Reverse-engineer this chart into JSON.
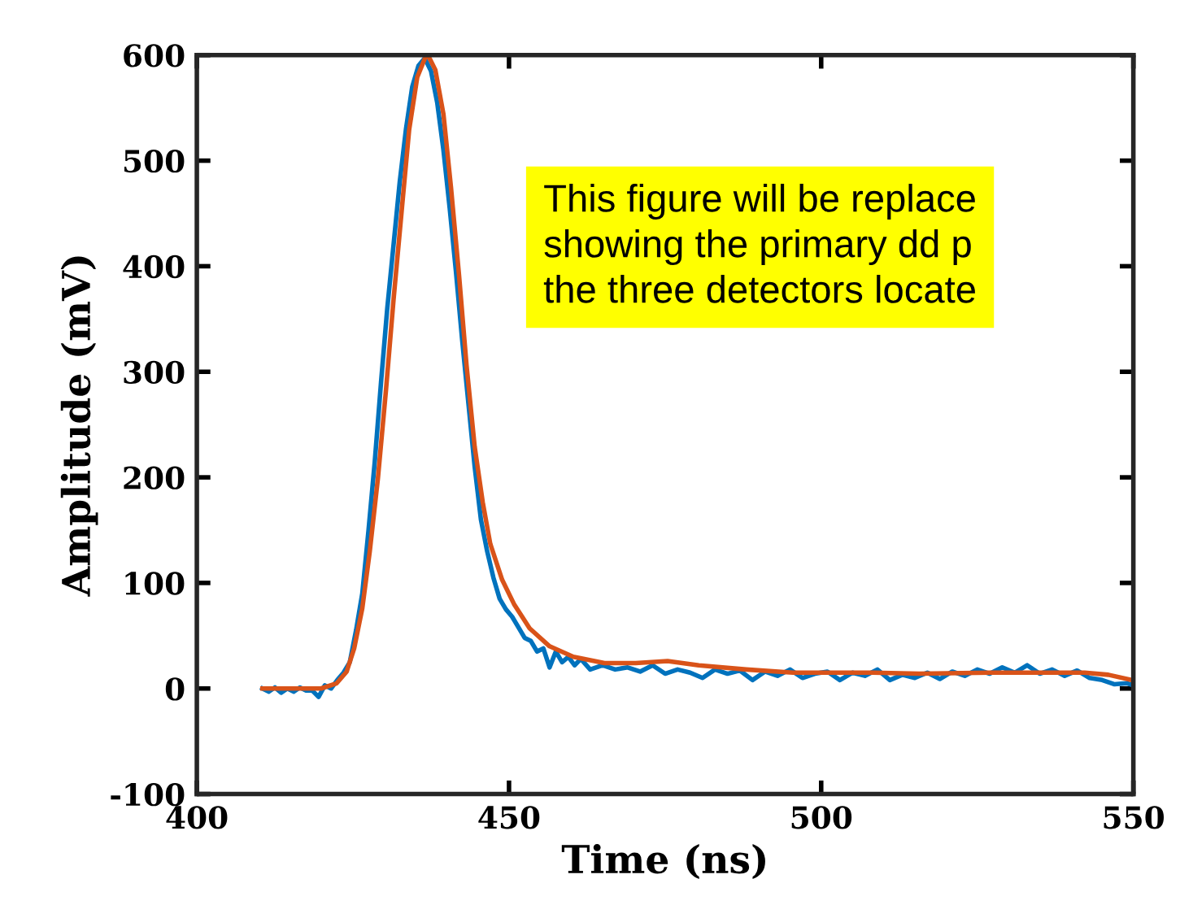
{
  "chart_data": {
    "type": "line",
    "xlabel": "Time (ns)",
    "ylabel": "Amplitude (mV)",
    "xlim": [
      400,
      550
    ],
    "xticks": [
      400,
      450,
      500,
      550
    ],
    "ylim": [
      -100,
      600
    ],
    "yticks": [
      -100,
      0,
      100,
      200,
      300,
      400,
      500,
      600
    ],
    "grid": false,
    "marker": "none",
    "line_style": "solid",
    "annotations": [
      "This figure will be replace\nshowing the primary dd p\nthe three detectors locate"
    ],
    "series": [
      {
        "color": "#0072bd",
        "x": [
          410.5,
          411.5,
          412.5,
          413.5,
          414.5,
          415.5,
          416.5,
          417.5,
          418.5,
          419.5,
          420.5,
          421.5,
          422.5,
          423.5,
          424.5,
          425.5,
          426.5,
          427.5,
          428.5,
          429.5,
          430.5,
          431.5,
          432.5,
          433.5,
          434.5,
          435.5,
          436.5,
          437.5,
          438.5,
          439.5,
          440.5,
          441.5,
          442.5,
          443.5,
          444.5,
          445.5,
          446.5,
          447.5,
          448.5,
          449.5,
          450.5,
          451.5,
          452.5,
          453.5,
          454.5,
          455.5,
          456.5,
          457.5,
          458.5,
          459.5,
          460.5,
          461.5,
          463,
          465,
          467,
          469,
          471,
          473,
          475,
          477,
          479,
          481,
          483,
          485,
          487,
          489,
          491,
          493,
          495,
          497,
          499,
          501,
          503,
          505,
          507,
          509,
          511,
          513,
          515,
          517,
          519,
          521,
          523,
          525,
          527,
          529,
          531,
          533,
          535,
          537,
          539,
          541,
          543,
          545,
          547,
          549,
          550
        ],
        "values": [
          0,
          -3,
          1,
          -4,
          0,
          -3,
          1,
          -2,
          -2,
          -8,
          3,
          0,
          8,
          15,
          25,
          55,
          90,
          150,
          215,
          290,
          360,
          420,
          480,
          530,
          570,
          590,
          597,
          585,
          555,
          510,
          455,
          395,
          330,
          270,
          210,
          160,
          130,
          105,
          85,
          75,
          68,
          58,
          48,
          45,
          35,
          38,
          20,
          35,
          25,
          30,
          22,
          28,
          18,
          22,
          18,
          20,
          16,
          22,
          14,
          18,
          15,
          10,
          18,
          14,
          17,
          8,
          16,
          12,
          18,
          10,
          14,
          16,
          8,
          15,
          12,
          18,
          8,
          13,
          10,
          15,
          9,
          16,
          12,
          18,
          14,
          20,
          15,
          22,
          14,
          18,
          12,
          17,
          10,
          8,
          4,
          5,
          3
        ]
      },
      {
        "color": "#d95319",
        "x": [
          410.5,
          419.9,
          422.4,
          424.0,
          425.2,
          426.5,
          427.7,
          429.0,
          430.3,
          431.5,
          432.8,
          434.0,
          435.3,
          436.6,
          437.1,
          438.2,
          439.5,
          440.7,
          442.0,
          443.2,
          444.5,
          445.8,
          447.0,
          448.9,
          450.8,
          453.3,
          456.5,
          460.3,
          465.3,
          470.3,
          475.4,
          480.4,
          488.0,
          495.5,
          508.2,
          515.7,
          527.1,
          542.2,
          546.0,
          549.8
        ],
        "values": [
          0,
          0,
          5,
          16,
          38,
          76,
          130,
          199,
          283,
          368,
          452,
          529,
          579,
          598,
          599,
          586,
          544,
          475,
          391,
          306,
          229,
          176,
          137,
          103,
          80,
          57,
          40,
          30,
          24,
          24,
          26,
          22,
          18,
          15,
          15,
          14,
          15,
          15,
          13,
          8
        ]
      }
    ]
  }
}
